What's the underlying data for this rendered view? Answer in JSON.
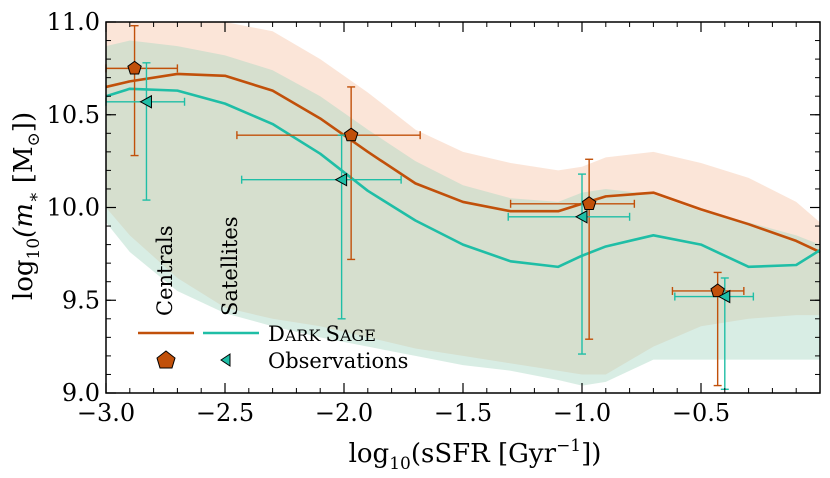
{
  "chart_data": {
    "type": "line",
    "xlabel_main": "log",
    "xlabel_sub": "10",
    "xlabel_rest": "(sSFR [Gyr",
    "xlabel_sup": "−1",
    "xlabel_end": "])",
    "ylabel_main": "log",
    "ylabel_sub": "10",
    "ylabel_var": "(m",
    "ylabel_var_sub": "∗",
    "ylabel_unit": " [M",
    "ylabel_unit_sub": "⊙",
    "ylabel_end": "])",
    "xlim": [
      -3.0,
      0.0
    ],
    "ylim": [
      9.0,
      11.0
    ],
    "xticks": [
      -3.0,
      -2.5,
      -2.0,
      -1.5,
      -1.0,
      -0.5
    ],
    "xtick_labels": [
      "−3.0",
      "−2.5",
      "−2.0",
      "−1.5",
      "−1.0",
      "−0.5"
    ],
    "yticks": [
      9.0,
      9.5,
      10.0,
      10.5,
      11.0
    ],
    "ytick_labels": [
      "9.0",
      "9.5",
      "10.0",
      "10.5",
      "11.0"
    ],
    "colors": {
      "centrals": "#c1500a",
      "satellites": "#1fbea6",
      "centrals_band": "#f9dccb",
      "satellites_band": "#a8d8c4"
    },
    "series": [
      {
        "name": "Centrals",
        "x": [
          -3.0,
          -2.9,
          -2.7,
          -2.5,
          -2.3,
          -2.1,
          -1.9,
          -1.7,
          -1.5,
          -1.3,
          -1.1,
          -1.0,
          -0.9,
          -0.7,
          -0.5,
          -0.3,
          -0.1,
          0.0
        ],
        "y": [
          10.65,
          10.68,
          10.72,
          10.71,
          10.63,
          10.48,
          10.3,
          10.13,
          10.03,
          9.98,
          9.98,
          10.02,
          10.06,
          10.08,
          9.99,
          9.91,
          9.82,
          9.76
        ],
        "upper": [
          11.0,
          11.0,
          11.0,
          11.0,
          10.95,
          10.8,
          10.62,
          10.42,
          10.3,
          10.24,
          10.2,
          10.22,
          10.27,
          10.3,
          10.24,
          10.16,
          10.03,
          9.92
        ],
        "lower": [
          10.0,
          9.85,
          9.62,
          9.46,
          9.4,
          9.36,
          9.3,
          9.24,
          9.2,
          9.16,
          9.12,
          9.1,
          9.1,
          9.25,
          9.36,
          9.4,
          9.42,
          9.42
        ]
      },
      {
        "name": "Satellites",
        "x": [
          -3.0,
          -2.9,
          -2.7,
          -2.5,
          -2.3,
          -2.1,
          -1.9,
          -1.7,
          -1.5,
          -1.3,
          -1.1,
          -1.0,
          -0.9,
          -0.7,
          -0.5,
          -0.3,
          -0.1,
          0.0
        ],
        "y": [
          10.6,
          10.64,
          10.63,
          10.56,
          10.45,
          10.29,
          10.09,
          9.93,
          9.8,
          9.71,
          9.68,
          9.74,
          9.79,
          9.85,
          9.8,
          9.68,
          9.69,
          9.77
        ],
        "upper": [
          10.87,
          10.9,
          10.87,
          10.82,
          10.74,
          10.6,
          10.42,
          10.25,
          10.12,
          10.05,
          10.03,
          10.08,
          10.1,
          10.07,
          9.98,
          9.92,
          9.85,
          9.8
        ],
        "lower": [
          9.92,
          9.76,
          9.55,
          9.43,
          9.36,
          9.3,
          9.25,
          9.2,
          9.15,
          9.12,
          9.07,
          9.04,
          9.06,
          9.18,
          9.18,
          9.18,
          9.18,
          9.18
        ]
      }
    ],
    "observations": [
      {
        "name": "Centrals",
        "points": [
          {
            "x": -2.88,
            "y": 10.75,
            "xlo": -3.0,
            "xhi": -2.7,
            "ylo": 10.28,
            "yhi": 10.98
          },
          {
            "x": -1.97,
            "y": 10.39,
            "xlo": -2.45,
            "xhi": -1.68,
            "ylo": 9.72,
            "yhi": 10.65
          },
          {
            "x": -0.97,
            "y": 10.02,
            "xlo": -1.3,
            "xhi": -0.78,
            "ylo": 9.29,
            "yhi": 10.26
          },
          {
            "x": -0.43,
            "y": 9.55,
            "xlo": -0.62,
            "xhi": -0.32,
            "ylo": 9.04,
            "yhi": 9.65
          }
        ]
      },
      {
        "name": "Satellites",
        "points": [
          {
            "x": -2.83,
            "y": 10.57,
            "xlo": -3.0,
            "xhi": -2.67,
            "ylo": 10.04,
            "yhi": 10.78
          },
          {
            "x": -2.01,
            "y": 10.15,
            "xlo": -2.43,
            "xhi": -1.76,
            "ylo": 9.4,
            "yhi": 10.39
          },
          {
            "x": -1.0,
            "y": 9.95,
            "xlo": -1.31,
            "xhi": -0.8,
            "ylo": 9.21,
            "yhi": 10.18
          },
          {
            "x": -0.4,
            "y": 9.52,
            "xlo": -0.61,
            "xhi": -0.28,
            "ylo": 9.02,
            "yhi": 9.62
          }
        ]
      }
    ],
    "legend": {
      "centrals_label": "Centrals",
      "satellites_label": "Satellites",
      "model_label_big1": "D",
      "model_label_small1": "ARK ",
      "model_label_big2": "S",
      "model_label_small2": "AGE",
      "obs_label": "Observations"
    }
  }
}
